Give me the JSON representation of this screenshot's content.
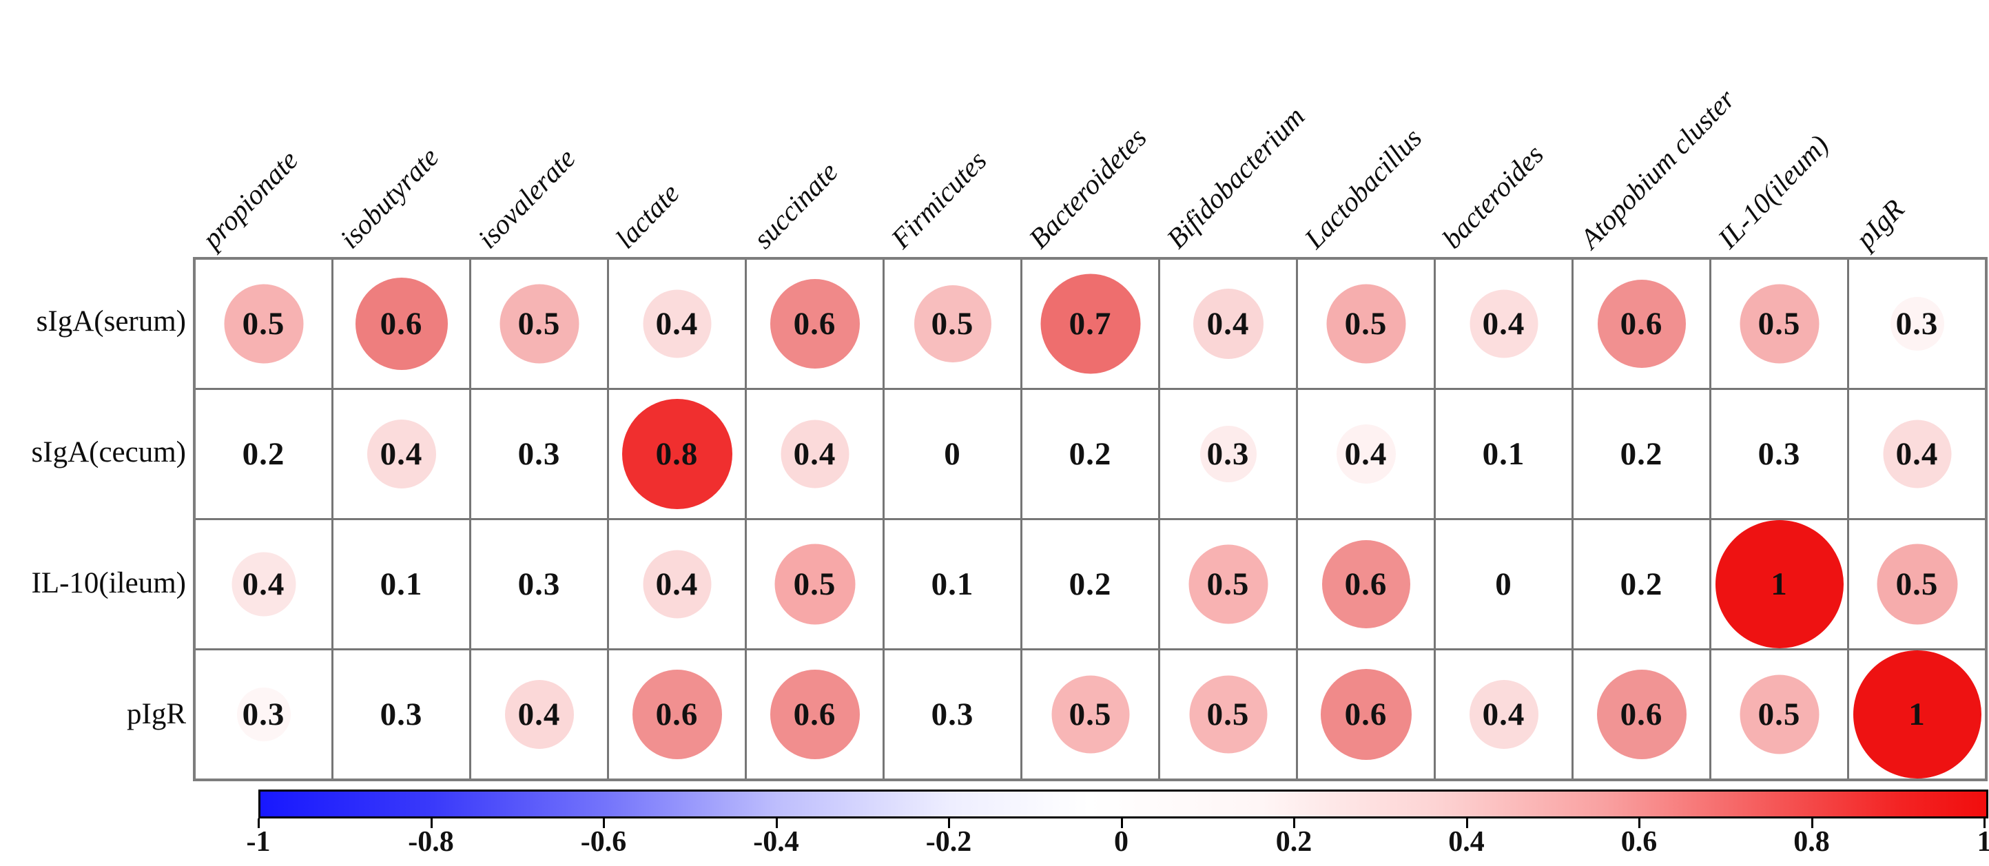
{
  "chart_data": {
    "type": "correlation-matrix",
    "title": "",
    "rows": [
      "sIgA(serum)",
      "sIgA(cecum)",
      "IL-10(ileum)",
      "pIgR"
    ],
    "columns": [
      "propionate",
      "isobutyrate",
      "isovalerate",
      "lactate",
      "succinate",
      "Firmicutes",
      "Bacteroidetes",
      "Bifidobacterium",
      "Lactobacillus",
      "bacteroides",
      "Atopobium cluster",
      "IL-10(ileum)",
      "pIgR"
    ],
    "values": [
      [
        0.5,
        0.6,
        0.5,
        0.4,
        0.6,
        0.5,
        0.7,
        0.4,
        0.5,
        0.4,
        0.6,
        0.5,
        0.3
      ],
      [
        0.2,
        0.4,
        0.3,
        0.8,
        0.4,
        0,
        0.2,
        0.3,
        0.4,
        0.1,
        0.2,
        0.3,
        0.4
      ],
      [
        0.4,
        0.1,
        0.3,
        0.4,
        0.5,
        0.1,
        0.2,
        0.5,
        0.6,
        0,
        0.2,
        1,
        0.5
      ],
      [
        0.3,
        0.3,
        0.4,
        0.6,
        0.6,
        0.3,
        0.5,
        0.5,
        0.6,
        0.4,
        0.6,
        0.5,
        1
      ]
    ],
    "circle_colors": [
      [
        "#f7b2b2",
        "#ee7e7e",
        "#f6b4b4",
        "#fbdcdc",
        "#f08989",
        "#f8bebe",
        "#ee6e6e",
        "#fad6d6",
        "#f6aeae",
        "#fcdede",
        "#f19090",
        "#f6b0b0",
        "#fef4f4"
      ],
      [
        null,
        "#fbdcdc",
        null,
        "#f02f2f",
        "#fbdada",
        null,
        null,
        "#fdecec",
        "#fef2f2",
        null,
        null,
        null,
        "#fbdcdc"
      ],
      [
        "#fce6e6",
        null,
        null,
        "#fbdada",
        "#f7a8a8",
        null,
        null,
        "#f8b2b2",
        "#f19090",
        null,
        null,
        "#ee1212",
        "#f6acac"
      ],
      [
        "#fef6f6",
        null,
        "#fbd8d8",
        "#f19090",
        "#f18e8e",
        null,
        "#f8b6b6",
        "#f8b6b6",
        "#f08a8a",
        "#fbdcdc",
        "#f19494",
        "#f7b2b2",
        "#ee1212"
      ]
    ],
    "circle_sizes": [
      [
        0.62,
        0.72,
        0.62,
        0.53,
        0.7,
        0.6,
        0.78,
        0.55,
        0.62,
        0.53,
        0.69,
        0.62,
        0.42
      ],
      [
        0,
        0.54,
        0,
        0.86,
        0.53,
        0,
        0,
        0.44,
        0.46,
        0,
        0,
        0,
        0.53
      ],
      [
        0.5,
        0,
        0,
        0.53,
        0.63,
        0,
        0,
        0.62,
        0.69,
        0,
        0,
        1.0,
        0.63
      ],
      [
        0.42,
        0,
        0.54,
        0.7,
        0.7,
        0,
        0.61,
        0.61,
        0.71,
        0.54,
        0.7,
        0.62,
        1.0
      ]
    ],
    "colorbar": {
      "min": -1,
      "max": 1,
      "tick_labels": [
        "-1",
        "-0.8",
        "-0.6",
        "-0.4",
        "-0.2",
        "0",
        "0.2",
        "0.4",
        "0.6",
        "0.8",
        "1"
      ],
      "gradient_stops": [
        {
          "pos": 0,
          "color": "#1818fe"
        },
        {
          "pos": 10,
          "color": "#3a3afa"
        },
        {
          "pos": 20,
          "color": "#7474fb"
        },
        {
          "pos": 30,
          "color": "#bebefd"
        },
        {
          "pos": 40,
          "color": "#eeeeff"
        },
        {
          "pos": 48,
          "color": "#ffffff"
        },
        {
          "pos": 58,
          "color": "#fff6f6"
        },
        {
          "pos": 68,
          "color": "#fdd4d4"
        },
        {
          "pos": 78,
          "color": "#f9a0a0"
        },
        {
          "pos": 88,
          "color": "#f55555"
        },
        {
          "pos": 95,
          "color": "#f32323"
        },
        {
          "pos": 100,
          "color": "#f20d0d"
        }
      ]
    },
    "grid_line_color": "#767676",
    "value_text_color": "#111111",
    "legend_position": "bottom"
  }
}
